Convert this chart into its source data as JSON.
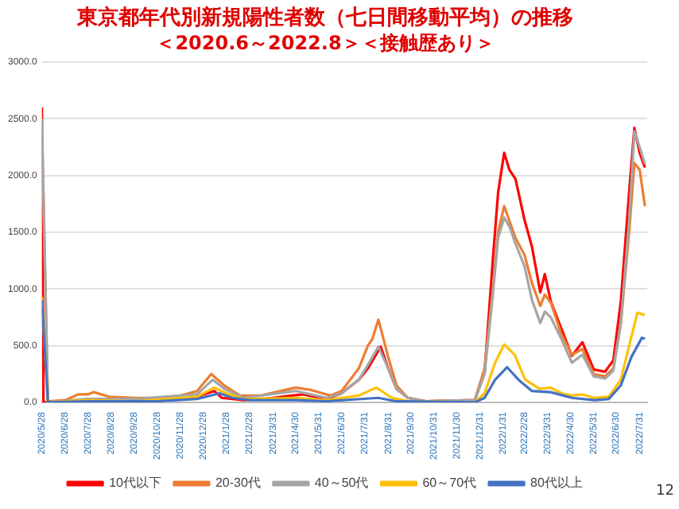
{
  "chart_data": {
    "type": "line",
    "title": "東京都年代別新規陽性者数（七日間移動平均）の推移",
    "subtitle": "＜2020.6～2022.8＞＜接触歴あり＞",
    "annotations": [
      "12"
    ],
    "legend": "bottom",
    "grid": "y",
    "marker": "none",
    "line_style": "solid",
    "ylim": [
      0,
      3000
    ],
    "yticks": [
      {
        "value": 0,
        "label": "0.0"
      },
      {
        "value": 500,
        "label": "500.0"
      },
      {
        "value": 1000,
        "label": "1000.0"
      },
      {
        "value": 1500,
        "label": "1500.0"
      },
      {
        "value": 2000,
        "label": "2000.0"
      },
      {
        "value": 2500,
        "label": "2500.0"
      },
      {
        "value": 3000,
        "label": "3000.0"
      }
    ],
    "xlim": [
      "2020-05-28",
      "2022-08-10"
    ],
    "xticks": [
      {
        "value": "2020-05-28",
        "label": "2020/5/28"
      },
      {
        "value": "2020-06-28",
        "label": "2020/6/28"
      },
      {
        "value": "2020-07-28",
        "label": "2020/7/28"
      },
      {
        "value": "2020-08-28",
        "label": "2020/8/28"
      },
      {
        "value": "2020-09-28",
        "label": "2020/9/28"
      },
      {
        "value": "2020-10-28",
        "label": "2020/10/28"
      },
      {
        "value": "2020-11-28",
        "label": "2020/11/28"
      },
      {
        "value": "2020-12-28",
        "label": "2020/12/28"
      },
      {
        "value": "2021-01-28",
        "label": "2021/1/28"
      },
      {
        "value": "2021-02-28",
        "label": "2021/2/28"
      },
      {
        "value": "2021-03-31",
        "label": "2021/3/31"
      },
      {
        "value": "2021-04-30",
        "label": "2021/4/30"
      },
      {
        "value": "2021-05-31",
        "label": "2021/5/31"
      },
      {
        "value": "2021-06-30",
        "label": "2021/6/30"
      },
      {
        "value": "2021-07-31",
        "label": "2021/7/31"
      },
      {
        "value": "2021-08-31",
        "label": "2021/8/31"
      },
      {
        "value": "2021-09-30",
        "label": "2021/9/30"
      },
      {
        "value": "2021-10-31",
        "label": "2021/10/31"
      },
      {
        "value": "2021-11-30",
        "label": "2021/11/30"
      },
      {
        "value": "2021-12-31",
        "label": "2021/12/31"
      },
      {
        "value": "2022-01-31",
        "label": "2022/1/31"
      },
      {
        "value": "2022-02-28",
        "label": "2022/2/28"
      },
      {
        "value": "2022-03-31",
        "label": "2022/3/31"
      },
      {
        "value": "2022-04-30",
        "label": "2022/4/30"
      },
      {
        "value": "2022-05-31",
        "label": "2022/5/31"
      },
      {
        "value": "2022-06-30",
        "label": "2022/6/30"
      },
      {
        "value": "2022-07-31",
        "label": "2022/7/31"
      }
    ],
    "series": [
      {
        "name": "10代以下",
        "color": "#ff0000",
        "x": [
          "2020-05-28",
          "2020-05-30",
          "2020-07-01",
          "2020-08-01",
          "2020-09-01",
          "2020-11-01",
          "2020-12-15",
          "2021-01-12",
          "2021-01-22",
          "2021-02-20",
          "2021-03-20",
          "2021-04-25",
          "2021-05-10",
          "2021-06-10",
          "2021-06-30",
          "2021-07-23",
          "2021-08-04",
          "2021-08-21",
          "2021-08-31",
          "2021-09-11",
          "2021-09-26",
          "2021-10-20",
          "2021-12-24",
          "2022-01-06",
          "2022-01-17",
          "2022-01-24",
          "2022-02-01",
          "2022-02-08",
          "2022-02-16",
          "2022-02-28",
          "2022-03-10",
          "2022-03-21",
          "2022-03-27",
          "2022-04-04",
          "2022-04-18",
          "2022-05-02",
          "2022-05-16",
          "2022-05-31",
          "2022-06-15",
          "2022-06-26",
          "2022-07-06",
          "2022-07-17",
          "2022-07-24",
          "2022-07-31",
          "2022-08-07"
        ],
        "values": [
          2600,
          0,
          10,
          30,
          20,
          20,
          40,
          100,
          40,
          20,
          30,
          60,
          70,
          30,
          80,
          200,
          300,
          490,
          300,
          120,
          40,
          10,
          20,
          260,
          1260,
          1850,
          2200,
          2050,
          1970,
          1610,
          1370,
          970,
          1130,
          890,
          650,
          410,
          530,
          290,
          270,
          370,
          890,
          1850,
          2420,
          2200,
          2070
        ]
      },
      {
        "name": "20-30代",
        "color": "#ed7d31",
        "x": [
          "2020-05-28",
          "2020-06-05",
          "2020-06-28",
          "2020-07-15",
          "2020-07-28",
          "2020-08-05",
          "2020-08-25",
          "2020-09-28",
          "2020-10-28",
          "2020-11-28",
          "2020-12-20",
          "2021-01-08",
          "2021-01-25",
          "2021-02-15",
          "2021-03-15",
          "2021-04-10",
          "2021-04-30",
          "2021-05-20",
          "2021-06-15",
          "2021-06-30",
          "2021-07-23",
          "2021-08-04",
          "2021-08-10",
          "2021-08-18",
          "2021-08-31",
          "2021-09-11",
          "2021-09-26",
          "2021-10-20",
          "2021-12-24",
          "2022-01-06",
          "2022-01-17",
          "2022-01-24",
          "2022-02-01",
          "2022-02-08",
          "2022-02-16",
          "2022-02-28",
          "2022-03-10",
          "2022-03-21",
          "2022-03-27",
          "2022-04-04",
          "2022-04-18",
          "2022-05-02",
          "2022-05-16",
          "2022-05-31",
          "2022-06-15",
          "2022-06-26",
          "2022-07-06",
          "2022-07-17",
          "2022-07-24",
          "2022-07-31",
          "2022-08-07"
        ],
        "values": [
          2400,
          10,
          20,
          70,
          70,
          90,
          50,
          40,
          40,
          60,
          100,
          250,
          150,
          60,
          60,
          100,
          130,
          110,
          60,
          100,
          300,
          500,
          560,
          730,
          400,
          150,
          40,
          10,
          20,
          300,
          1000,
          1500,
          1730,
          1600,
          1450,
          1300,
          1050,
          850,
          950,
          880,
          600,
          420,
          470,
          250,
          230,
          300,
          700,
          1500,
          2110,
          2050,
          1730
        ]
      },
      {
        "name": "40～50代",
        "color": "#a5a5a5",
        "x": [
          "2020-05-28",
          "2020-06-05",
          "2020-07-28",
          "2020-09-28",
          "2020-12-20",
          "2021-01-10",
          "2021-01-25",
          "2021-02-20",
          "2021-04-30",
          "2021-06-10",
          "2021-06-30",
          "2021-07-23",
          "2021-08-04",
          "2021-08-18",
          "2021-08-31",
          "2021-09-11",
          "2021-09-26",
          "2021-10-20",
          "2021-12-24",
          "2022-01-06",
          "2022-01-17",
          "2022-01-24",
          "2022-02-01",
          "2022-02-08",
          "2022-02-16",
          "2022-02-28",
          "2022-03-10",
          "2022-03-21",
          "2022-03-27",
          "2022-04-04",
          "2022-04-18",
          "2022-05-02",
          "2022-05-16",
          "2022-05-31",
          "2022-06-15",
          "2022-06-26",
          "2022-07-06",
          "2022-07-17",
          "2022-07-24",
          "2022-07-31",
          "2022-08-07"
        ],
        "values": [
          2500,
          0,
          30,
          30,
          70,
          200,
          120,
          40,
          100,
          40,
          80,
          200,
          330,
          490,
          300,
          120,
          40,
          10,
          20,
          250,
          950,
          1450,
          1630,
          1550,
          1400,
          1200,
          900,
          700,
          800,
          750,
          560,
          350,
          420,
          230,
          210,
          280,
          700,
          1600,
          2390,
          2250,
          2100
        ]
      },
      {
        "name": "60～70代",
        "color": "#ffc000",
        "x": [
          "2020-05-28",
          "2020-06-05",
          "2020-07-28",
          "2020-09-28",
          "2020-12-20",
          "2021-01-12",
          "2021-01-28",
          "2021-02-20",
          "2021-04-30",
          "2021-06-10",
          "2021-07-23",
          "2021-08-15",
          "2021-09-05",
          "2021-09-26",
          "2021-12-24",
          "2022-01-06",
          "2022-01-20",
          "2022-02-01",
          "2022-02-15",
          "2022-03-01",
          "2022-03-20",
          "2022-04-04",
          "2022-04-18",
          "2022-05-02",
          "2022-05-16",
          "2022-06-01",
          "2022-06-20",
          "2022-07-06",
          "2022-07-17",
          "2022-07-28",
          "2022-08-07"
        ],
        "values": [
          930,
          0,
          20,
          10,
          50,
          130,
          80,
          30,
          40,
          20,
          60,
          130,
          40,
          10,
          0,
          80,
          350,
          510,
          420,
          200,
          120,
          130,
          80,
          60,
          70,
          40,
          50,
          200,
          500,
          790,
          770
        ]
      },
      {
        "name": "80代以上",
        "color": "#4472c4",
        "x": [
          "2020-05-28",
          "2020-06-05",
          "2020-07-28",
          "2020-10-28",
          "2020-12-20",
          "2021-01-19",
          "2021-02-05",
          "2021-03-01",
          "2021-04-30",
          "2021-06-10",
          "2021-08-18",
          "2021-09-10",
          "2021-12-24",
          "2022-01-06",
          "2022-01-20",
          "2022-02-05",
          "2022-02-20",
          "2022-03-10",
          "2022-04-04",
          "2022-05-02",
          "2022-06-01",
          "2022-06-20",
          "2022-07-06",
          "2022-07-20",
          "2022-08-03",
          "2022-08-07"
        ],
        "values": [
          900,
          0,
          10,
          10,
          30,
          80,
          40,
          20,
          20,
          10,
          40,
          10,
          0,
          40,
          200,
          310,
          200,
          100,
          90,
          40,
          20,
          30,
          150,
          400,
          570,
          560
        ]
      }
    ]
  }
}
